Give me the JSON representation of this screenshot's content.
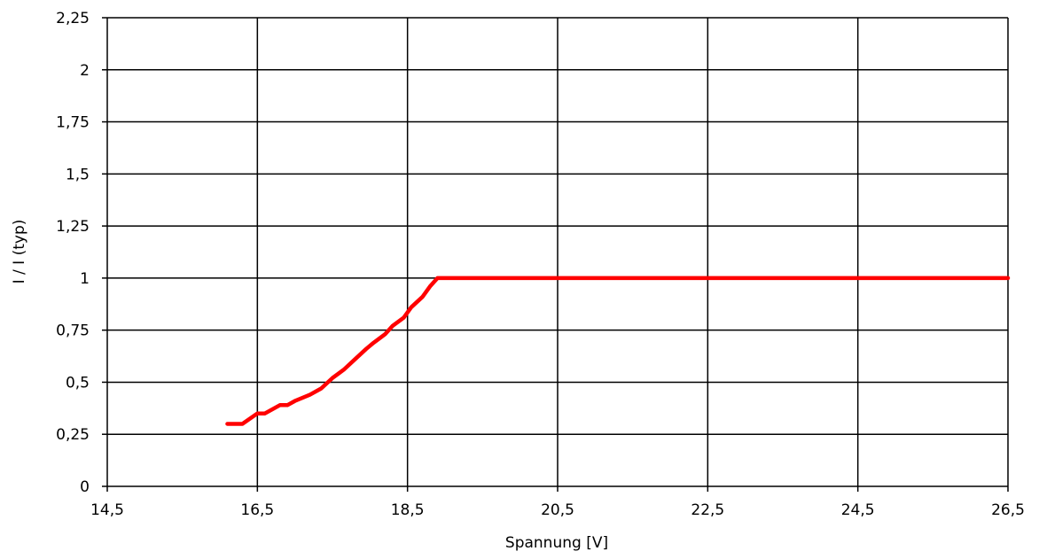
{
  "chart_data": {
    "type": "line",
    "xlabel": "Spannung [V]",
    "ylabel": "I / I (typ)",
    "xlim": [
      14.5,
      26.5
    ],
    "ylim": [
      0,
      2.25
    ],
    "x_ticks": [
      "14,5",
      "16,5",
      "18,5",
      "20,5",
      "22,5",
      "24,5",
      "26,5"
    ],
    "y_ticks": [
      "0",
      "0,25",
      "0,5",
      "0,75",
      "1",
      "1,25",
      "1,5",
      "1,75",
      "2",
      "2,25"
    ],
    "grid": true,
    "series": [
      {
        "color": "#ff0000",
        "x": [
          16.1,
          16.3,
          16.5,
          16.6,
          16.8,
          16.9,
          17.0,
          17.2,
          17.35,
          17.5,
          17.65,
          17.8,
          17.95,
          18.05,
          18.2,
          18.3,
          18.45,
          18.55,
          18.7,
          18.8,
          18.9,
          19.0,
          19.5,
          20.5,
          21.5,
          22.5,
          23.5,
          24.5,
          25.5,
          26.5
        ],
        "y": [
          0.3,
          0.3,
          0.35,
          0.35,
          0.39,
          0.39,
          0.41,
          0.44,
          0.47,
          0.52,
          0.56,
          0.61,
          0.66,
          0.69,
          0.73,
          0.77,
          0.81,
          0.86,
          0.91,
          0.96,
          1.0,
          1.0,
          1.0,
          1.0,
          1.0,
          1.0,
          1.0,
          1.0,
          1.0,
          1.0
        ]
      }
    ]
  }
}
